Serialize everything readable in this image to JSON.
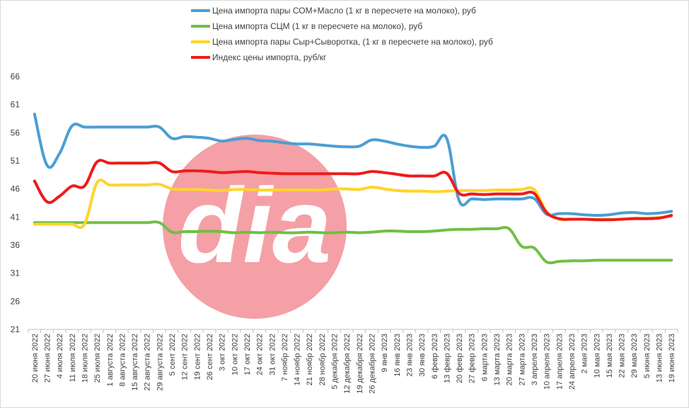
{
  "chart_data": {
    "type": "line",
    "title": "",
    "xlabel": "",
    "ylabel": "",
    "ylim": [
      21,
      66
    ],
    "yticks": [
      21,
      26,
      31,
      36,
      41,
      46,
      51,
      56,
      61,
      66
    ],
    "grid": false,
    "legend_position": "top-center",
    "categories": [
      "20 июня 2022",
      "27 июня 2022",
      "4 июля 2022",
      "11 июля 2022",
      "18 июля 2022",
      "25 июля 2022",
      "1 августа 2022",
      "8 августа 2022",
      "15 августа 2022",
      "22 августа 2022",
      "29 августа 2022",
      "5 сент 2022",
      "12 сент 2022",
      "19 сент 2022",
      "26 сент 2022",
      "3 окт 2022",
      "10 окт 2022",
      "17 окт 2022",
      "24 окт 2022",
      "31 окт 2022",
      "7 ноябр 2022",
      "14 ноябр 2022",
      "21 ноябр 2022",
      "28 ноябр 2022",
      "5 декабря 2022",
      "12 декабря 2022",
      "19 декабря 2022",
      "26 декабря 2022",
      "9 янв 2023",
      "16 янв 2023",
      "23 янв 2023",
      "30 янв 2023",
      "6 февр 2023",
      "13 февр 2023",
      "20 февр 2023",
      "27 февр 2023",
      "6 марта 2023",
      "13 марта 2023",
      "20 марта 2023",
      "27 марта 2023",
      "3 апреля 2023",
      "10 апреля 2023",
      "17 апреля 2023",
      "24 апреля 2023",
      "2 мая 2023",
      "10 мая 2023",
      "15 мая 2023",
      "22 мая 2023",
      "29 мая 2023",
      "5 июня 2023",
      "13 июня 2023",
      "19 июня 2023"
    ],
    "series": [
      {
        "name": "Цена импорта пары СОМ+Масло  (1 кг в пересчете на молоко), руб",
        "color": "#4a9fd4",
        "values": [
          59.3,
          50.2,
          52.3,
          57.2,
          57.0,
          57.0,
          57.0,
          57.0,
          57.0,
          57.0,
          57.0,
          55.0,
          55.3,
          55.2,
          55.0,
          54.5,
          54.8,
          55.0,
          54.6,
          54.5,
          54.2,
          54.0,
          54.0,
          53.8,
          53.6,
          53.5,
          53.6,
          54.7,
          54.5,
          54.0,
          53.6,
          53.4,
          53.6,
          55.0,
          43.9,
          44.2,
          44.1,
          44.2,
          44.2,
          44.2,
          44.3,
          41.5,
          41.6,
          41.6,
          41.4,
          41.3,
          41.4,
          41.7,
          41.8,
          41.6,
          41.7,
          42.0
        ]
      },
      {
        "name": "Цена импорта СЦМ (1 кг в пересчете на молоко), руб",
        "color": "#70c045",
        "values": [
          40.0,
          40.0,
          40.0,
          40.0,
          40.0,
          40.0,
          40.0,
          40.0,
          40.0,
          40.0,
          40.0,
          38.3,
          38.4,
          38.4,
          38.5,
          38.4,
          38.2,
          38.3,
          38.2,
          38.3,
          38.2,
          38.2,
          38.3,
          38.2,
          38.2,
          38.3,
          38.2,
          38.3,
          38.5,
          38.5,
          38.4,
          38.4,
          38.5,
          38.7,
          38.8,
          38.8,
          38.9,
          38.9,
          38.9,
          35.8,
          35.5,
          33.0,
          33.1,
          33.2,
          33.2,
          33.3,
          33.3,
          33.3,
          33.3,
          33.3,
          33.3,
          33.3
        ]
      },
      {
        "name": "Цена импорта пары Сыр+Сыворотка, (1 кг в пересчете на молоко), руб",
        "color": "#ffd42a",
        "values": [
          39.7,
          39.7,
          39.7,
          39.7,
          39.7,
          47.1,
          46.7,
          46.7,
          46.7,
          46.7,
          46.8,
          46.0,
          45.9,
          45.9,
          45.8,
          45.7,
          45.9,
          45.9,
          45.8,
          45.8,
          45.8,
          45.8,
          45.8,
          45.8,
          46.0,
          46.0,
          45.9,
          46.3,
          46.0,
          45.7,
          45.6,
          45.6,
          45.5,
          45.6,
          45.7,
          45.7,
          45.7,
          45.8,
          45.8,
          45.9,
          45.9,
          42.0,
          40.6,
          40.6,
          40.6,
          40.6,
          40.6,
          40.6,
          40.8,
          40.8,
          40.9,
          41.1
        ]
      },
      {
        "name": "Индекс цены импорта, руб/кг",
        "color": "#ee1b1b",
        "values": [
          47.4,
          43.7,
          44.7,
          46.5,
          46.5,
          50.8,
          50.6,
          50.6,
          50.6,
          50.6,
          50.6,
          49.1,
          49.2,
          49.2,
          49.1,
          48.9,
          49.0,
          49.1,
          48.9,
          48.8,
          48.7,
          48.7,
          48.7,
          48.7,
          48.7,
          48.7,
          48.7,
          49.1,
          48.9,
          48.6,
          48.3,
          48.3,
          48.3,
          48.8,
          45.2,
          45.1,
          45.0,
          45.1,
          45.1,
          45.1,
          45.2,
          41.8,
          40.7,
          40.6,
          40.6,
          40.5,
          40.5,
          40.6,
          40.7,
          40.7,
          40.8,
          41.3
        ]
      }
    ]
  },
  "watermark": {
    "text": "dia",
    "circle_color": "#f4a0a6"
  }
}
